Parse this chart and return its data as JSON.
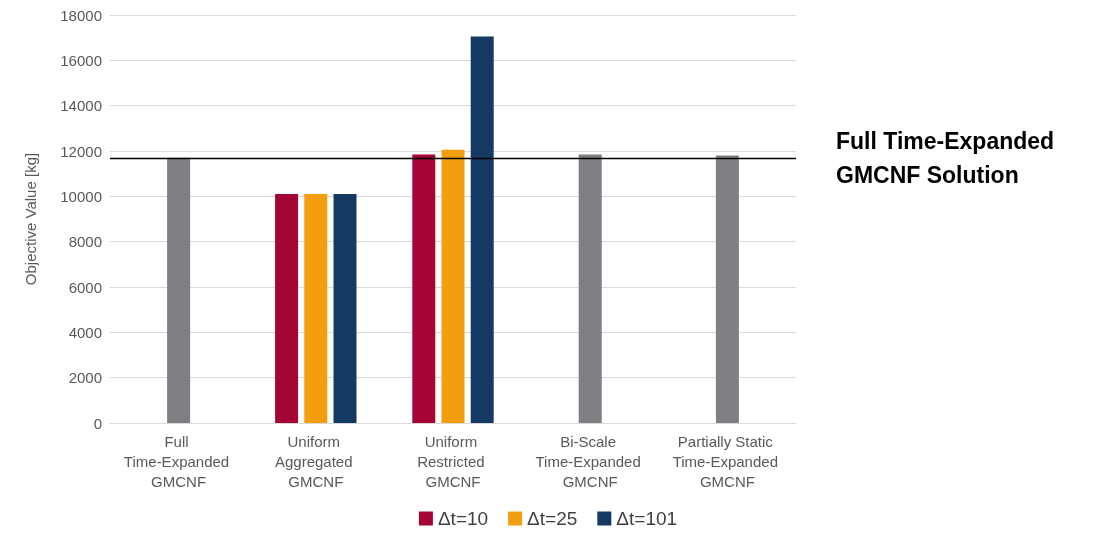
{
  "chart_data": {
    "type": "bar",
    "ylabel": "Objective Value [kg]",
    "categories": [
      "Full Time-Expanded GMCNF",
      "Uniform Aggregated GMCNF",
      "Uniform Restricted GMCNF",
      "Bi-Scale Time-Expanded GMCNF",
      "Partially Static Time-Expanded GMCNF"
    ],
    "series": [
      {
        "color": "#7f7e83",
        "values": [
          11700,
          null,
          null,
          11850,
          11800
        ]
      },
      {
        "name": "Δt=10",
        "color": "#a50534",
        "values": [
          null,
          10100,
          11850,
          null,
          null
        ]
      },
      {
        "name": "Δt=25",
        "color": "#f29e0f",
        "values": [
          null,
          10100,
          12050,
          null,
          null
        ]
      },
      {
        "name": "Δt=101",
        "color": "#143a63",
        "values": [
          null,
          10100,
          17050,
          null,
          null
        ]
      }
    ],
    "ylim": [
      0,
      18000
    ],
    "yticks": [
      0,
      2000,
      4000,
      6000,
      8000,
      10000,
      12000,
      14000,
      16000,
      18000
    ],
    "grid": "y",
    "legend": "bottom",
    "ref_lines": [
      {
        "axis": "y",
        "value": 11700,
        "label": "Full Time-Expanded GMCNF Solution",
        "color": "#000000"
      }
    ]
  }
}
